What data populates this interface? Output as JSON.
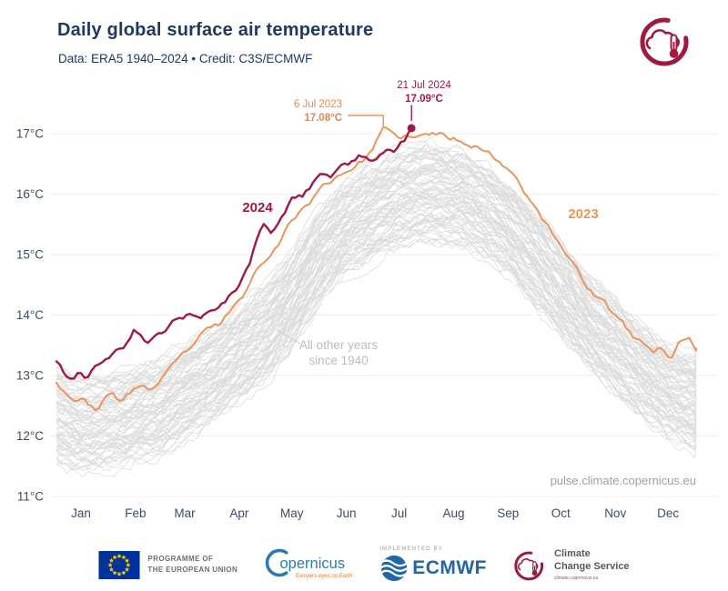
{
  "header": {
    "title": "Daily global surface air temperature",
    "subtitle": "Data: ERA5 1940–2024 • Credit: C3S/ECMWF"
  },
  "watermark": "pulse.climate.copernicus.eu",
  "colors": {
    "color_2024": "#9e1b3f",
    "color_2023": "#e8955c",
    "other_years": "#dcdcdc",
    "grid": "#eeeeee",
    "title_navy": "#21395d",
    "axis_text": "#3d4d66",
    "brand_crimson": "#9e1b3f"
  },
  "chart_data": {
    "type": "line",
    "title": "Daily global surface air temperature",
    "xlabel": "",
    "ylabel": "°C",
    "x_axis": {
      "months": [
        "Jan",
        "Feb",
        "Mar",
        "Apr",
        "May",
        "Jun",
        "Jul",
        "Aug",
        "Sep",
        "Oct",
        "Nov",
        "Dec"
      ],
      "range_days": [
        1,
        365
      ]
    },
    "y_axis": {
      "unit": "°C",
      "ticks": [
        {
          "label": "17°C",
          "t": 17
        },
        {
          "label": "16°C",
          "t": 16
        },
        {
          "label": "15°C",
          "t": 15
        },
        {
          "label": "14°C",
          "t": 14
        },
        {
          "label": "13°C",
          "t": 13
        },
        {
          "label": "12°C",
          "t": 12
        },
        {
          "label": "11°C",
          "t": 11
        }
      ],
      "range": [
        11,
        17.4
      ],
      "grid": true
    },
    "annotations": {
      "peak_2024": {
        "date": "21 Jul 2024",
        "value": "17.09°C",
        "day": 203,
        "temp": 17.09
      },
      "peak_2023": {
        "date": "6 Jul 2023",
        "value": "17.08°C",
        "day": 187,
        "temp": 17.08
      },
      "other_years": {
        "line1": "All other years",
        "line2": "since 1940"
      }
    },
    "series": [
      {
        "name": "2024",
        "label": "2024",
        "color": "#9e1b3f",
        "end_day": 203,
        "anchors": [
          [
            1,
            13.25
          ],
          [
            5,
            13.05
          ],
          [
            10,
            12.95
          ],
          [
            14,
            13.15
          ],
          [
            18,
            12.9
          ],
          [
            24,
            13.2
          ],
          [
            32,
            13.32
          ],
          [
            40,
            13.45
          ],
          [
            45,
            13.7
          ],
          [
            52,
            13.55
          ],
          [
            60,
            13.65
          ],
          [
            68,
            13.9
          ],
          [
            75,
            14.0
          ],
          [
            83,
            13.95
          ],
          [
            91,
            14.05
          ],
          [
            96,
            14.2
          ],
          [
            101,
            14.35
          ],
          [
            105,
            14.45
          ],
          [
            110,
            14.75
          ],
          [
            115,
            15.2
          ],
          [
            119,
            15.45
          ],
          [
            124,
            15.35
          ],
          [
            129,
            15.55
          ],
          [
            135,
            15.88
          ],
          [
            141,
            15.95
          ],
          [
            146,
            16.1
          ],
          [
            152,
            16.38
          ],
          [
            158,
            16.3
          ],
          [
            163,
            16.5
          ],
          [
            168,
            16.55
          ],
          [
            174,
            16.68
          ],
          [
            179,
            16.58
          ],
          [
            184,
            16.65
          ],
          [
            188,
            16.75
          ],
          [
            193,
            16.72
          ],
          [
            197,
            16.88
          ],
          [
            200,
            16.95
          ],
          [
            203,
            17.09
          ]
        ]
      },
      {
        "name": "2023",
        "label": "2023",
        "color": "#e8955c",
        "end_day": 365,
        "anchors": [
          [
            1,
            12.92
          ],
          [
            6,
            12.75
          ],
          [
            10,
            12.65
          ],
          [
            16,
            12.6
          ],
          [
            23,
            12.45
          ],
          [
            32,
            12.7
          ],
          [
            38,
            12.57
          ],
          [
            44,
            12.72
          ],
          [
            49,
            12.85
          ],
          [
            55,
            12.77
          ],
          [
            60,
            12.9
          ],
          [
            70,
            13.2
          ],
          [
            79,
            13.5
          ],
          [
            88,
            13.75
          ],
          [
            94,
            13.82
          ],
          [
            100,
            14.08
          ],
          [
            105,
            14.2
          ],
          [
            110,
            14.45
          ],
          [
            115,
            14.75
          ],
          [
            121,
            15.0
          ],
          [
            128,
            15.25
          ],
          [
            135,
            15.58
          ],
          [
            142,
            15.8
          ],
          [
            149,
            16.0
          ],
          [
            155,
            16.18
          ],
          [
            161,
            16.3
          ],
          [
            166,
            16.4
          ],
          [
            172,
            16.5
          ],
          [
            177,
            16.6
          ],
          [
            182,
            16.82
          ],
          [
            187,
            17.08
          ],
          [
            190,
            17.0
          ],
          [
            194,
            16.9
          ],
          [
            199,
            16.95
          ],
          [
            205,
            16.9
          ],
          [
            210,
            16.95
          ],
          [
            216,
            17.0
          ],
          [
            222,
            16.95
          ],
          [
            230,
            16.9
          ],
          [
            238,
            16.85
          ],
          [
            244,
            16.75
          ],
          [
            251,
            16.6
          ],
          [
            258,
            16.45
          ],
          [
            265,
            16.2
          ],
          [
            270,
            15.95
          ],
          [
            274,
            15.8
          ],
          [
            280,
            15.5
          ],
          [
            285,
            15.25
          ],
          [
            290,
            15.05
          ],
          [
            296,
            14.85
          ],
          [
            301,
            14.6
          ],
          [
            307,
            14.35
          ],
          [
            313,
            14.2
          ],
          [
            318,
            14.0
          ],
          [
            324,
            13.8
          ],
          [
            330,
            13.6
          ],
          [
            336,
            13.5
          ],
          [
            341,
            13.35
          ],
          [
            346,
            13.45
          ],
          [
            351,
            13.3
          ],
          [
            356,
            13.55
          ],
          [
            360,
            13.65
          ],
          [
            365,
            13.45
          ]
        ]
      },
      {
        "name": "All other years since 1940",
        "type": "ensemble",
        "years_from": 1940,
        "years_to": 2022,
        "count": 83,
        "color": "#dcdcdc",
        "offset_range": [
          -0.6,
          0.9
        ],
        "noise": 0.2,
        "base_anchors": [
          [
            1,
            12.2
          ],
          [
            15,
            12.05
          ],
          [
            32,
            12.1
          ],
          [
            60,
            12.35
          ],
          [
            91,
            12.9
          ],
          [
            105,
            13.2
          ],
          [
            121,
            13.6
          ],
          [
            135,
            14.1
          ],
          [
            152,
            14.9
          ],
          [
            166,
            15.3
          ],
          [
            182,
            15.6
          ],
          [
            196,
            15.8
          ],
          [
            206,
            15.85
          ],
          [
            213,
            15.9
          ],
          [
            222,
            15.85
          ],
          [
            232,
            15.8
          ],
          [
            244,
            15.6
          ],
          [
            258,
            15.3
          ],
          [
            274,
            14.8
          ],
          [
            288,
            14.3
          ],
          [
            305,
            13.7
          ],
          [
            320,
            13.3
          ],
          [
            335,
            12.9
          ],
          [
            350,
            12.6
          ],
          [
            365,
            12.4
          ]
        ]
      }
    ]
  },
  "footer": {
    "eu": {
      "line1": "PROGRAMME OF",
      "line2": "THE EUROPEAN UNION"
    },
    "copernicus": {
      "text": "opernicus",
      "tagline": "Europe's eyes on Earth"
    },
    "ecmwf": {
      "implemented_by": "IMPLEMENTED BY",
      "name": "ECMWF"
    },
    "c3s": {
      "line1": "Climate",
      "line2": "Change Service",
      "sub": "climate.copernicus.eu"
    }
  }
}
